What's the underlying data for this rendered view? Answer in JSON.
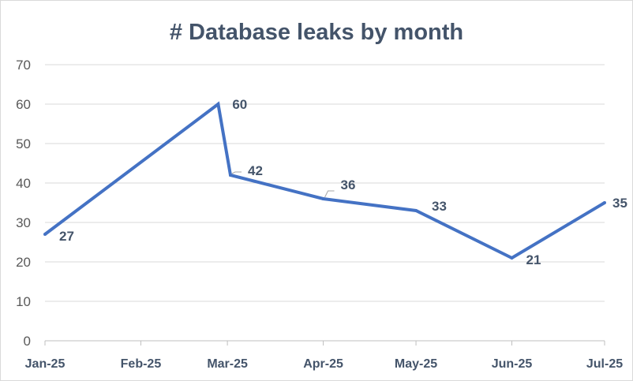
{
  "chart_data": {
    "type": "line",
    "title": "# Database leaks by month",
    "xlabel": "",
    "ylabel": "",
    "ylim": [
      0,
      70
    ],
    "yticks": [
      0,
      10,
      20,
      30,
      40,
      50,
      60,
      70
    ],
    "ytick_labels": [
      "0",
      "10",
      "20",
      "30",
      "40",
      "50",
      "60",
      "70"
    ],
    "grid": true,
    "legend": "none",
    "x_ticks": [
      "Jan-25",
      "Feb-25",
      "Mar-25",
      "Apr-25",
      "May-25",
      "Jun-25",
      "Jul-25"
    ],
    "series": [
      {
        "color": "#4472c4",
        "points": [
          {
            "x": "2025-01-01",
            "y": 27,
            "label": "27"
          },
          {
            "x": "2025-02-26",
            "y": 60,
            "label": "60"
          },
          {
            "x": "2025-03-02",
            "y": 42,
            "label": "42"
          },
          {
            "x": "2025-04-01",
            "y": 36,
            "label": "36"
          },
          {
            "x": "2025-05-01",
            "y": 33,
            "label": "33"
          },
          {
            "x": "2025-06-01",
            "y": 21,
            "label": "21"
          },
          {
            "x": "2025-07-01",
            "y": 35,
            "label": "35"
          }
        ]
      }
    ]
  }
}
